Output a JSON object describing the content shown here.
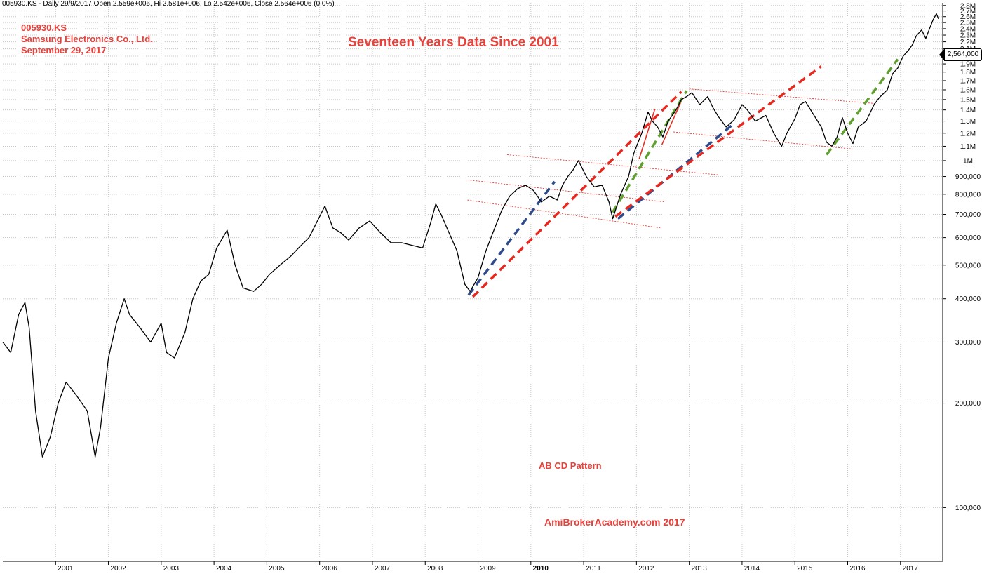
{
  "header": {
    "info_line": "005930.KS - Daily 29/9/2017 Open 2.559e+006, Hi 2.581e+006, Lo 2.542e+006, Close 2.564e+006 (0.0%)"
  },
  "symbol_block": {
    "ticker": "005930.KS",
    "company": "Samsung Electronics Co., Ltd.",
    "date": "September 29, 2017"
  },
  "annotations": {
    "title": "Seventeen Years Data Since 2001",
    "pattern_label": "AB CD Pattern",
    "brand": "AmiBrokerAcademy.com  2017",
    "last_price_tag": "2,564,000"
  },
  "colors": {
    "price_line": "#000000",
    "grid": "#c8c8c8",
    "annotation_text": "#e8403a",
    "red_trend": "#e8281e",
    "green_trend": "#5fa030",
    "blue_trend": "#2e4c8c",
    "thin_channel": "#e8281e"
  },
  "chart_data": {
    "type": "line",
    "title": "",
    "xlabel": "",
    "ylabel": "",
    "x_range": [
      2000.0,
      2017.8
    ],
    "ylim": [
      70000,
      2850000
    ],
    "y_scale": "log",
    "grid": true,
    "x_tick_labels": [
      "2001",
      "2002",
      "2003",
      "2004",
      "2005",
      "2006",
      "2007",
      "2008",
      "2009",
      "2010",
      "2011",
      "2012",
      "2013",
      "2014",
      "2015",
      "2016",
      "2017"
    ],
    "x_ticks": [
      2001,
      2002,
      2003,
      2004,
      2005,
      2006,
      2007,
      2008,
      2009,
      2010,
      2011,
      2012,
      2013,
      2014,
      2015,
      2016,
      2017
    ],
    "y_ticks": [
      100000,
      200000,
      300000,
      400000,
      500000,
      600000,
      700000,
      800000,
      900000,
      1000000,
      1100000,
      1200000,
      1300000,
      1400000,
      1500000,
      1600000,
      1700000,
      1800000,
      1900000,
      2000000,
      2100000,
      2200000,
      2300000,
      2400000,
      2500000,
      2600000,
      2700000,
      2800000
    ],
    "y_tick_labels": [
      "100,000",
      "200,000",
      "300,000",
      "400,000",
      "500,000",
      "600,000",
      "700,000",
      "800,000",
      "900,000",
      "1M",
      "1.1M",
      "1.2M",
      "1.3M",
      "1.4M",
      "1.5M",
      "1.6M",
      "1.7M",
      "1.8M",
      "1.9M",
      "2M",
      "2.1M",
      "2.2M",
      "2.3M",
      "2.4M",
      "2.5M",
      "2.6M",
      "2.7M",
      "2.8M"
    ],
    "series": [
      {
        "points": [
          [
            2000.0,
            300000
          ],
          [
            2000.15,
            280000
          ],
          [
            2000.3,
            360000
          ],
          [
            2000.42,
            390000
          ],
          [
            2000.5,
            330000
          ],
          [
            2000.62,
            190000
          ],
          [
            2000.75,
            140000
          ],
          [
            2000.9,
            160000
          ],
          [
            2001.05,
            200000
          ],
          [
            2001.2,
            230000
          ],
          [
            2001.4,
            210000
          ],
          [
            2001.6,
            190000
          ],
          [
            2001.75,
            140000
          ],
          [
            2001.85,
            170000
          ],
          [
            2002.0,
            270000
          ],
          [
            2002.15,
            340000
          ],
          [
            2002.3,
            400000
          ],
          [
            2002.4,
            360000
          ],
          [
            2002.6,
            330000
          ],
          [
            2002.8,
            300000
          ],
          [
            2003.0,
            340000
          ],
          [
            2003.1,
            280000
          ],
          [
            2003.25,
            270000
          ],
          [
            2003.45,
            320000
          ],
          [
            2003.6,
            400000
          ],
          [
            2003.75,
            450000
          ],
          [
            2003.9,
            470000
          ],
          [
            2004.05,
            560000
          ],
          [
            2004.25,
            630000
          ],
          [
            2004.4,
            500000
          ],
          [
            2004.55,
            430000
          ],
          [
            2004.75,
            420000
          ],
          [
            2004.9,
            440000
          ],
          [
            2005.05,
            470000
          ],
          [
            2005.25,
            500000
          ],
          [
            2005.45,
            530000
          ],
          [
            2005.6,
            560000
          ],
          [
            2005.8,
            600000
          ],
          [
            2006.0,
            690000
          ],
          [
            2006.1,
            740000
          ],
          [
            2006.25,
            640000
          ],
          [
            2006.4,
            620000
          ],
          [
            2006.55,
            590000
          ],
          [
            2006.75,
            640000
          ],
          [
            2006.95,
            670000
          ],
          [
            2007.15,
            620000
          ],
          [
            2007.35,
            580000
          ],
          [
            2007.55,
            580000
          ],
          [
            2007.75,
            570000
          ],
          [
            2007.95,
            560000
          ],
          [
            2008.1,
            660000
          ],
          [
            2008.2,
            750000
          ],
          [
            2008.3,
            700000
          ],
          [
            2008.45,
            620000
          ],
          [
            2008.6,
            550000
          ],
          [
            2008.75,
            440000
          ],
          [
            2008.85,
            420000
          ],
          [
            2009.0,
            460000
          ],
          [
            2009.15,
            550000
          ],
          [
            2009.3,
            630000
          ],
          [
            2009.45,
            720000
          ],
          [
            2009.6,
            790000
          ],
          [
            2009.75,
            830000
          ],
          [
            2009.9,
            850000
          ],
          [
            2010.05,
            820000
          ],
          [
            2010.2,
            760000
          ],
          [
            2010.35,
            790000
          ],
          [
            2010.5,
            770000
          ],
          [
            2010.6,
            850000
          ],
          [
            2010.7,
            900000
          ],
          [
            2010.8,
            940000
          ],
          [
            2010.9,
            1000000
          ],
          [
            2011.05,
            900000
          ],
          [
            2011.2,
            840000
          ],
          [
            2011.35,
            850000
          ],
          [
            2011.48,
            760000
          ],
          [
            2011.55,
            680000
          ],
          [
            2011.7,
            800000
          ],
          [
            2011.85,
            900000
          ],
          [
            2011.95,
            1050000
          ],
          [
            2012.1,
            1200000
          ],
          [
            2012.22,
            1380000
          ],
          [
            2012.3,
            1300000
          ],
          [
            2012.4,
            1250000
          ],
          [
            2012.5,
            1170000
          ],
          [
            2012.6,
            1300000
          ],
          [
            2012.75,
            1400000
          ],
          [
            2012.85,
            1500000
          ],
          [
            2012.95,
            1530000
          ],
          [
            2013.05,
            1570000
          ],
          [
            2013.2,
            1450000
          ],
          [
            2013.35,
            1530000
          ],
          [
            2013.45,
            1420000
          ],
          [
            2013.55,
            1340000
          ],
          [
            2013.7,
            1250000
          ],
          [
            2013.85,
            1310000
          ],
          [
            2014.0,
            1450000
          ],
          [
            2014.1,
            1400000
          ],
          [
            2014.25,
            1300000
          ],
          [
            2014.45,
            1350000
          ],
          [
            2014.6,
            1200000
          ],
          [
            2014.75,
            1100000
          ],
          [
            2014.85,
            1200000
          ],
          [
            2015.0,
            1320000
          ],
          [
            2015.1,
            1450000
          ],
          [
            2015.2,
            1480000
          ],
          [
            2015.35,
            1360000
          ],
          [
            2015.5,
            1250000
          ],
          [
            2015.6,
            1130000
          ],
          [
            2015.7,
            1100000
          ],
          [
            2015.8,
            1170000
          ],
          [
            2015.9,
            1330000
          ],
          [
            2016.0,
            1200000
          ],
          [
            2016.1,
            1120000
          ],
          [
            2016.2,
            1250000
          ],
          [
            2016.35,
            1300000
          ],
          [
            2016.5,
            1450000
          ],
          [
            2016.6,
            1520000
          ],
          [
            2016.75,
            1600000
          ],
          [
            2016.85,
            1780000
          ],
          [
            2016.95,
            1850000
          ],
          [
            2017.05,
            2000000
          ],
          [
            2017.15,
            2080000
          ],
          [
            2017.22,
            2150000
          ],
          [
            2017.3,
            2290000
          ],
          [
            2017.4,
            2380000
          ],
          [
            2017.48,
            2250000
          ],
          [
            2017.55,
            2400000
          ],
          [
            2017.62,
            2550000
          ],
          [
            2017.68,
            2650000
          ],
          [
            2017.72,
            2564000
          ]
        ]
      }
    ],
    "overlays": {
      "red_dashed": [
        [
          [
            2008.9,
            405000
          ],
          [
            2012.85,
            1580000
          ]
        ],
        [
          [
            2011.6,
            690000
          ],
          [
            2015.5,
            1870000
          ]
        ]
      ],
      "green_dashed": [
        [
          [
            2011.55,
            710000
          ],
          [
            2012.95,
            1590000
          ]
        ],
        [
          [
            2015.6,
            1040000
          ],
          [
            2016.95,
            1960000
          ]
        ]
      ],
      "blue_dashed": [
        [
          [
            2008.82,
            410000
          ],
          [
            2010.45,
            870000
          ]
        ],
        [
          [
            2011.65,
            680000
          ],
          [
            2013.85,
            1280000
          ]
        ]
      ],
      "red_thin_solid": [
        [
          [
            2012.05,
            1010000
          ],
          [
            2012.35,
            1410000
          ]
        ],
        [
          [
            2012.48,
            1110000
          ],
          [
            2012.88,
            1520000
          ]
        ]
      ],
      "red_thin_dotted": [
        [
          [
            2008.8,
            770000
          ],
          [
            2012.45,
            640000
          ]
        ],
        [
          [
            2008.8,
            880000
          ],
          [
            2012.55,
            760000
          ]
        ],
        [
          [
            2009.55,
            1040000
          ],
          [
            2013.55,
            910000
          ]
        ],
        [
          [
            2013.0,
            1610000
          ],
          [
            2016.55,
            1460000
          ]
        ],
        [
          [
            2012.7,
            1210000
          ],
          [
            2016.1,
            1080000
          ]
        ]
      ]
    }
  }
}
